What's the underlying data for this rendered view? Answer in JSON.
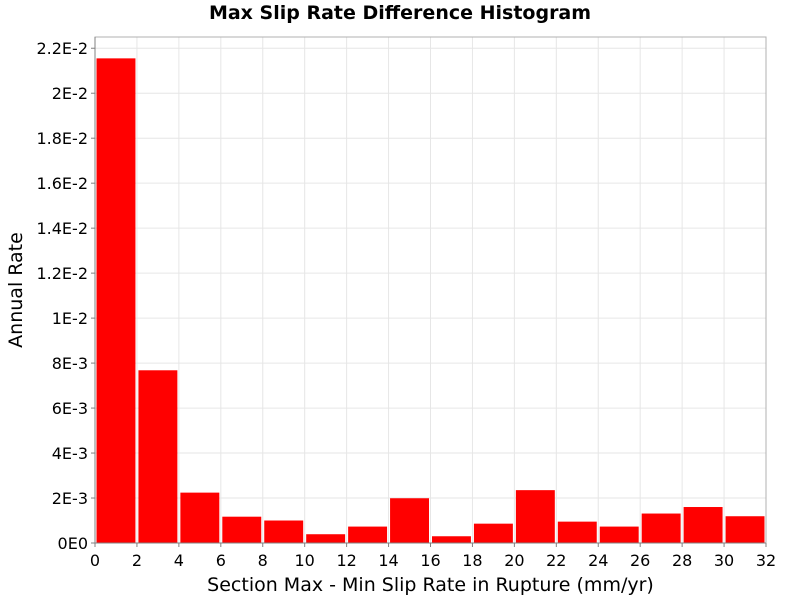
{
  "chart_data": {
    "type": "bar",
    "title": "Max Slip Rate Difference Histogram",
    "xlabel": "Section Max - Min Slip Rate in Rupture (mm/yr)",
    "ylabel": "Annual Rate",
    "xlim": [
      0,
      32
    ],
    "ylim": [
      0,
      0.0225
    ],
    "grid": true,
    "bin_width": 2,
    "bars": [
      {
        "x_start": 0,
        "x_end": 2,
        "value": 0.02155
      },
      {
        "x_start": 2,
        "x_end": 4,
        "value": 0.00768
      },
      {
        "x_start": 4,
        "x_end": 6,
        "value": 0.00224
      },
      {
        "x_start": 6,
        "x_end": 8,
        "value": 0.00117
      },
      {
        "x_start": 8,
        "x_end": 10,
        "value": 0.001
      },
      {
        "x_start": 10,
        "x_end": 12,
        "value": 0.00039
      },
      {
        "x_start": 12,
        "x_end": 14,
        "value": 0.00073
      },
      {
        "x_start": 14,
        "x_end": 16,
        "value": 0.00199
      },
      {
        "x_start": 16,
        "x_end": 18,
        "value": 0.0003
      },
      {
        "x_start": 18,
        "x_end": 20,
        "value": 0.00086
      },
      {
        "x_start": 20,
        "x_end": 22,
        "value": 0.00235
      },
      {
        "x_start": 22,
        "x_end": 24,
        "value": 0.00095
      },
      {
        "x_start": 24,
        "x_end": 26,
        "value": 0.00073
      },
      {
        "x_start": 26,
        "x_end": 28,
        "value": 0.00131
      },
      {
        "x_start": 28,
        "x_end": 30,
        "value": 0.0016
      },
      {
        "x_start": 30,
        "x_end": 32,
        "value": 0.00119
      }
    ],
    "x_ticks": [
      {
        "value": 0,
        "label": "0"
      },
      {
        "value": 2,
        "label": "2"
      },
      {
        "value": 4,
        "label": "4"
      },
      {
        "value": 6,
        "label": "6"
      },
      {
        "value": 8,
        "label": "8"
      },
      {
        "value": 10,
        "label": "10"
      },
      {
        "value": 12,
        "label": "12"
      },
      {
        "value": 14,
        "label": "14"
      },
      {
        "value": 16,
        "label": "16"
      },
      {
        "value": 18,
        "label": "18"
      },
      {
        "value": 20,
        "label": "20"
      },
      {
        "value": 22,
        "label": "22"
      },
      {
        "value": 24,
        "label": "24"
      },
      {
        "value": 26,
        "label": "26"
      },
      {
        "value": 28,
        "label": "28"
      },
      {
        "value": 30,
        "label": "30"
      },
      {
        "value": 32,
        "label": "32"
      }
    ],
    "y_ticks": [
      {
        "value": 0,
        "label": "0E0"
      },
      {
        "value": 0.002,
        "label": "2E-3"
      },
      {
        "value": 0.004,
        "label": "4E-3"
      },
      {
        "value": 0.006,
        "label": "6E-3"
      },
      {
        "value": 0.008,
        "label": "8E-3"
      },
      {
        "value": 0.01,
        "label": "1E-2"
      },
      {
        "value": 0.012,
        "label": "1.2E-2"
      },
      {
        "value": 0.014,
        "label": "1.4E-2"
      },
      {
        "value": 0.016,
        "label": "1.6E-2"
      },
      {
        "value": 0.018,
        "label": "1.8E-2"
      },
      {
        "value": 0.02,
        "label": "2E-2"
      },
      {
        "value": 0.022,
        "label": "2.2E-2"
      }
    ],
    "colors": {
      "bar": "#ff0000",
      "grid": "#e6e6e6",
      "frame": "#b0b0b0",
      "background": "#ffffff"
    }
  }
}
